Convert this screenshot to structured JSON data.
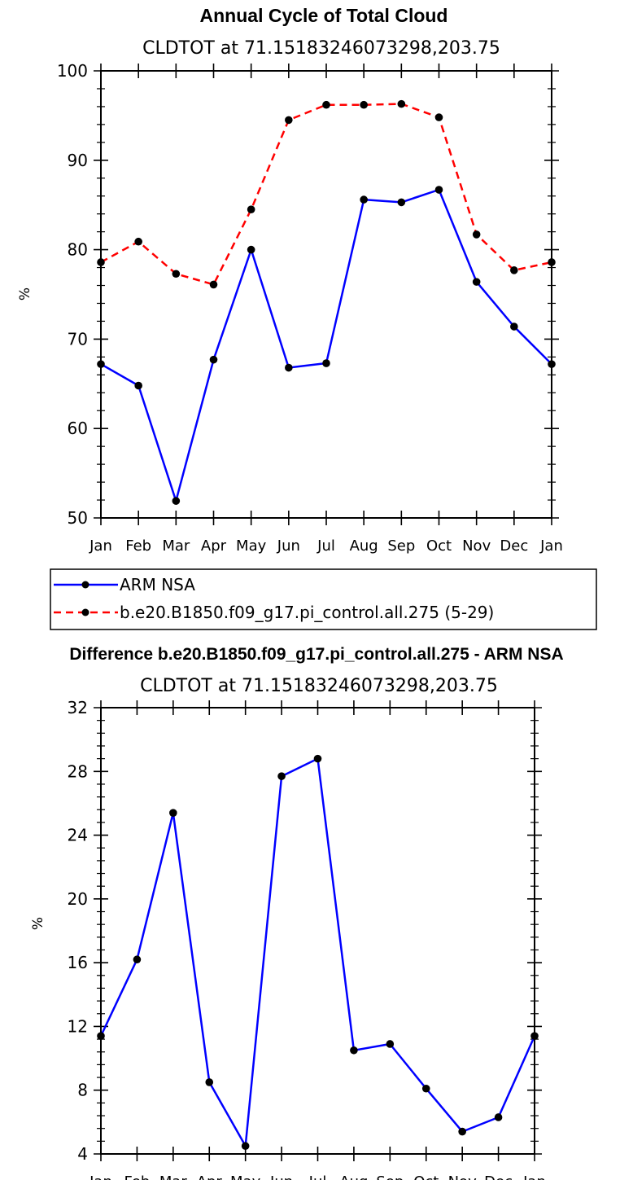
{
  "chart_data": [
    {
      "type": "line",
      "title": "Annual Cycle of Total Cloud",
      "subtitle": "CLDTOT at 71.15183246073298,203.75",
      "xlabel": "",
      "ylabel": "%",
      "categories": [
        "Jan",
        "Feb",
        "Mar",
        "Apr",
        "May",
        "Jun",
        "Jul",
        "Aug",
        "Sep",
        "Oct",
        "Nov",
        "Dec",
        "Jan"
      ],
      "ylim": [
        50,
        100
      ],
      "yticks": [
        50,
        60,
        70,
        80,
        90,
        100
      ],
      "grid": false,
      "legend_position": "bottom",
      "title_color": "#ff0000",
      "series": [
        {
          "name": "ARM NSA",
          "color": "#0000ff",
          "dash": "solid",
          "values": [
            67.2,
            64.8,
            51.9,
            67.7,
            80.0,
            66.8,
            67.3,
            85.6,
            85.3,
            86.7,
            76.4,
            71.4,
            67.2
          ]
        },
        {
          "name": "b.e20.B1850.f09_g17.pi_control.all.275 (5-29)",
          "color": "#ff0000",
          "dash": "dashed",
          "values": [
            78.6,
            80.9,
            77.3,
            76.1,
            84.5,
            94.5,
            96.2,
            96.2,
            96.3,
            94.8,
            81.7,
            77.7,
            78.6
          ]
        }
      ]
    },
    {
      "type": "line",
      "title": "Difference b.e20.B1850.f09_g17.pi_control.all.275 - ARM NSA",
      "subtitle": "CLDTOT at 71.15183246073298,203.75",
      "xlabel": "",
      "ylabel": "%",
      "categories": [
        "Jan",
        "Feb",
        "Mar",
        "Apr",
        "May",
        "Jun",
        "Jul",
        "Aug",
        "Sep",
        "Oct",
        "Nov",
        "Dec",
        "Jan"
      ],
      "ylim": [
        4,
        32
      ],
      "yticks": [
        4,
        8,
        12,
        16,
        20,
        24,
        28,
        32
      ],
      "grid": false,
      "title_color": "#000000",
      "series": [
        {
          "color": "#0000ff",
          "dash": "solid",
          "values": [
            11.4,
            16.2,
            25.4,
            8.5,
            4.5,
            27.7,
            28.8,
            10.5,
            10.9,
            8.1,
            5.4,
            6.3,
            11.4
          ]
        }
      ]
    }
  ]
}
